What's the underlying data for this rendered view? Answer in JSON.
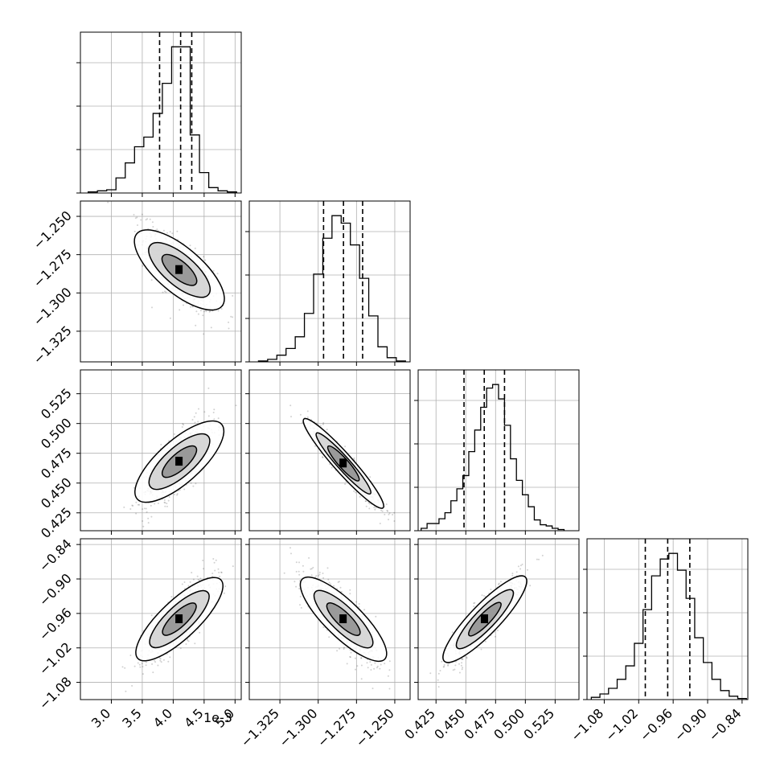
{
  "figure": {
    "offset_label": "1e-3"
  },
  "chart_data": [
    {
      "type": "bar",
      "panel": "hist-p0",
      "xlim": [
        2.5,
        5.1
      ],
      "x": [
        2.7,
        2.85,
        3.0,
        3.15,
        3.3,
        3.45,
        3.6,
        3.75,
        3.9,
        4.05,
        4.2,
        4.35,
        4.5,
        4.65,
        4.8,
        4.95
      ],
      "values": [
        1,
        2,
        3,
        14,
        28,
        43,
        52,
        74,
        102,
        136,
        136,
        54,
        19,
        5,
        2,
        1
      ],
      "quantiles": [
        3.78,
        4.12,
        4.3
      ],
      "x_ticks": [
        "3.0",
        "3.5",
        "4.0",
        "4.5",
        "5.0"
      ],
      "x_tick_values": [
        3.0,
        3.5,
        4.0,
        4.5,
        5.0
      ]
    },
    {
      "type": "bar",
      "panel": "hist-p1",
      "xlim": [
        -1.345,
        -1.24
      ],
      "x": [
        -1.336,
        -1.33,
        -1.324,
        -1.318,
        -1.312,
        -1.306,
        -1.3,
        -1.294,
        -1.288,
        -1.282,
        -1.276,
        -1.27,
        -1.264,
        -1.258,
        -1.252,
        -1.246
      ],
      "values": [
        1,
        3,
        8,
        16,
        30,
        58,
        105,
        148,
        175,
        166,
        140,
        100,
        55,
        18,
        5,
        1
      ],
      "quantiles": [
        -1.2965,
        -1.2835,
        -1.271
      ],
      "x_ticks": [
        "−1.325",
        "−1.300",
        "−1.275",
        "−1.250"
      ],
      "x_tick_values": [
        -1.325,
        -1.3,
        -1.275,
        -1.25
      ]
    },
    {
      "type": "bar",
      "panel": "hist-p2",
      "xlim": [
        0.41,
        0.545
      ],
      "x": [
        0.415,
        0.42,
        0.425,
        0.43,
        0.435,
        0.44,
        0.445,
        0.45,
        0.455,
        0.46,
        0.465,
        0.47,
        0.475,
        0.48,
        0.485,
        0.49,
        0.495,
        0.5,
        0.505,
        0.51,
        0.515,
        0.52,
        0.525,
        0.53
      ],
      "values": [
        2,
        6,
        6,
        10,
        15,
        25,
        35,
        46,
        66,
        84,
        103,
        119,
        122,
        110,
        88,
        60,
        42,
        30,
        20,
        9,
        5,
        4,
        2,
        1
      ],
      "quantiles": [
        0.4485,
        0.4655,
        0.4825
      ],
      "x_ticks": [
        "0.425",
        "0.450",
        "0.475",
        "0.500",
        "0.525"
      ],
      "x_tick_values": [
        0.425,
        0.45,
        0.475,
        0.5,
        0.525
      ]
    },
    {
      "type": "bar",
      "panel": "hist-p3",
      "xlim": [
        -1.11,
        -0.83
      ],
      "x": [
        -1.095,
        -1.08,
        -1.065,
        -1.05,
        -1.035,
        -1.02,
        -1.005,
        -0.99,
        -0.975,
        -0.96,
        -0.945,
        -0.93,
        -0.915,
        -0.9,
        -0.885,
        -0.87,
        -0.855,
        -0.84
      ],
      "values": [
        2,
        5,
        10,
        18,
        30,
        50,
        80,
        110,
        125,
        130,
        115,
        90,
        55,
        33,
        18,
        8,
        3,
        1
      ],
      "quantiles": [
        -1.0085,
        -0.9695,
        -0.931
      ],
      "x_ticks": [
        "−1.08",
        "−1.02",
        "−0.96",
        "−0.90",
        "−0.84"
      ],
      "x_tick_values": [
        -1.08,
        -1.02,
        -0.96,
        -0.9,
        -0.84
      ]
    },
    {
      "type": "scatter",
      "panel": "p0-vs-p1",
      "xlim": [
        2.5,
        5.1
      ],
      "ylim": [
        -1.345,
        -1.24
      ],
      "center": [
        4.1,
        -1.285
      ],
      "y_ticks": [
        "−1.250",
        "−1.275",
        "−1.300",
        "−1.325"
      ],
      "y_tick_values": [
        -1.25,
        -1.275,
        -1.3,
        -1.325
      ]
    },
    {
      "type": "scatter",
      "panel": "p0-vs-p2",
      "xlim": [
        2.5,
        5.1
      ],
      "ylim": [
        0.41,
        0.545
      ],
      "center": [
        4.1,
        0.468
      ],
      "y_ticks": [
        "0.525",
        "0.500",
        "0.475",
        "0.450",
        "0.425"
      ],
      "y_tick_values": [
        0.525,
        0.5,
        0.475,
        0.45,
        0.425
      ]
    },
    {
      "type": "scatter",
      "panel": "p1-vs-p2",
      "xlim": [
        -1.345,
        -1.24
      ],
      "ylim": [
        0.41,
        0.545
      ],
      "center": [
        -1.2835,
        0.4665
      ]
    },
    {
      "type": "scatter",
      "panel": "p0-vs-p3",
      "xlim": [
        2.5,
        5.1
      ],
      "ylim": [
        -1.11,
        -0.83
      ],
      "center": [
        4.1,
        -0.97
      ],
      "y_ticks": [
        "−0.84",
        "−0.90",
        "−0.96",
        "−1.02",
        "−1.08"
      ],
      "y_tick_values": [
        -0.84,
        -0.9,
        -0.96,
        -1.02,
        -1.08
      ]
    },
    {
      "type": "scatter",
      "panel": "p1-vs-p3",
      "xlim": [
        -1.345,
        -1.24
      ],
      "ylim": [
        -1.11,
        -0.83
      ],
      "center": [
        -1.2835,
        -0.97
      ]
    },
    {
      "type": "scatter",
      "panel": "p2-vs-p3",
      "xlim": [
        0.41,
        0.545
      ],
      "ylim": [
        -1.11,
        -0.83
      ],
      "center": [
        0.466,
        -0.97
      ]
    }
  ]
}
